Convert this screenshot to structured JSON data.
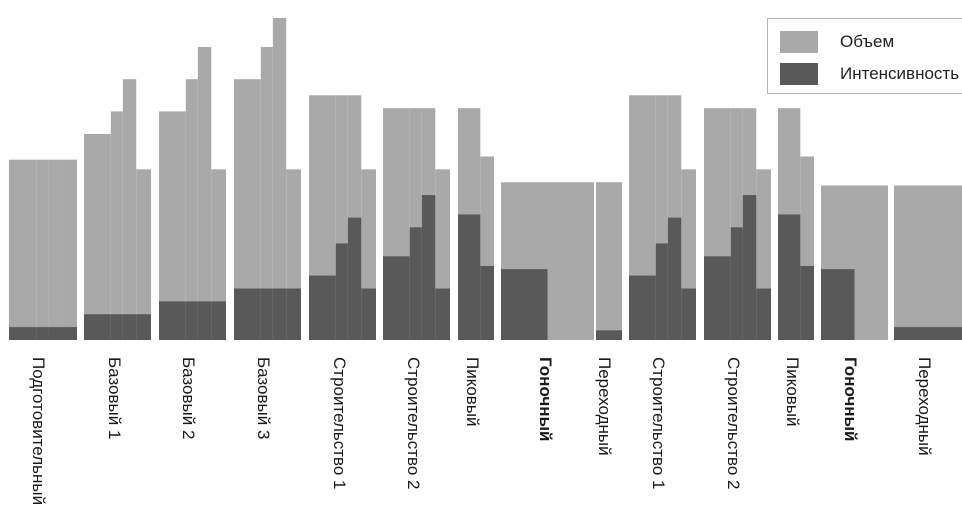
{
  "colors": {
    "volume": "#a9a9a9",
    "intensity": "#595959",
    "text": "#1a1a1a"
  },
  "legend": {
    "volume_label": "Объем",
    "intensity_label": "Интенсивность"
  },
  "chart_data": {
    "type": "bar",
    "subtype": "stepped-overlapping-columns",
    "grid": false,
    "legend_position": "top-right",
    "ylim": [
      0,
      100
    ],
    "categories": [
      {
        "label": "Подготовительный",
        "bold": false,
        "volume": [
          56,
          56,
          56,
          56
        ],
        "intensity": [
          4,
          4,
          4,
          4
        ]
      },
      {
        "label": "Базовый 1",
        "bold": false,
        "volume": [
          64,
          71,
          81,
          53
        ],
        "intensity": [
          8,
          8,
          8,
          8
        ]
      },
      {
        "label": "Базовый 2",
        "bold": false,
        "volume": [
          71,
          81,
          91,
          53
        ],
        "intensity": [
          12,
          12,
          12,
          12
        ]
      },
      {
        "label": "Базовый 3",
        "bold": false,
        "volume": [
          81,
          91,
          100,
          53
        ],
        "intensity": [
          16,
          16,
          16,
          16
        ]
      },
      {
        "label": "Строительство 1",
        "bold": false,
        "volume": [
          76,
          76,
          76,
          53
        ],
        "intensity": [
          20,
          30,
          38,
          16
        ]
      },
      {
        "label": "Строительство 2",
        "bold": false,
        "volume": [
          72,
          72,
          72,
          53
        ],
        "intensity": [
          26,
          35,
          45,
          16
        ]
      },
      {
        "label": "Пиковый",
        "bold": false,
        "volume": [
          72,
          57
        ],
        "intensity": [
          39,
          23
        ]
      },
      {
        "label": "Гоночный",
        "bold": true,
        "volume": [
          49,
          49
        ],
        "intensity": [
          22,
          22
        ]
      },
      {
        "label": "Переходный",
        "bold": false,
        "volume": [
          49
        ],
        "intensity": [
          3
        ]
      },
      {
        "label": "Строительство 1",
        "bold": false,
        "volume": [
          76,
          76,
          76,
          53
        ],
        "intensity": [
          20,
          30,
          38,
          16
        ]
      },
      {
        "label": "Строительство 2",
        "bold": false,
        "volume": [
          72,
          72,
          72,
          53
        ],
        "intensity": [
          26,
          35,
          45,
          16
        ]
      },
      {
        "label": "Пиковый",
        "bold": false,
        "volume": [
          72,
          57
        ],
        "intensity": [
          39,
          23
        ]
      },
      {
        "label": "Гоночный",
        "bold": true,
        "volume": [
          48,
          48
        ],
        "intensity": [
          22,
          22
        ]
      },
      {
        "label": "Переходный",
        "bold": false,
        "volume": [
          48
        ],
        "intensity": [
          4
        ]
      }
    ],
    "series": [
      {
        "name": "Объем"
      },
      {
        "name": "Интенсивность"
      }
    ]
  }
}
